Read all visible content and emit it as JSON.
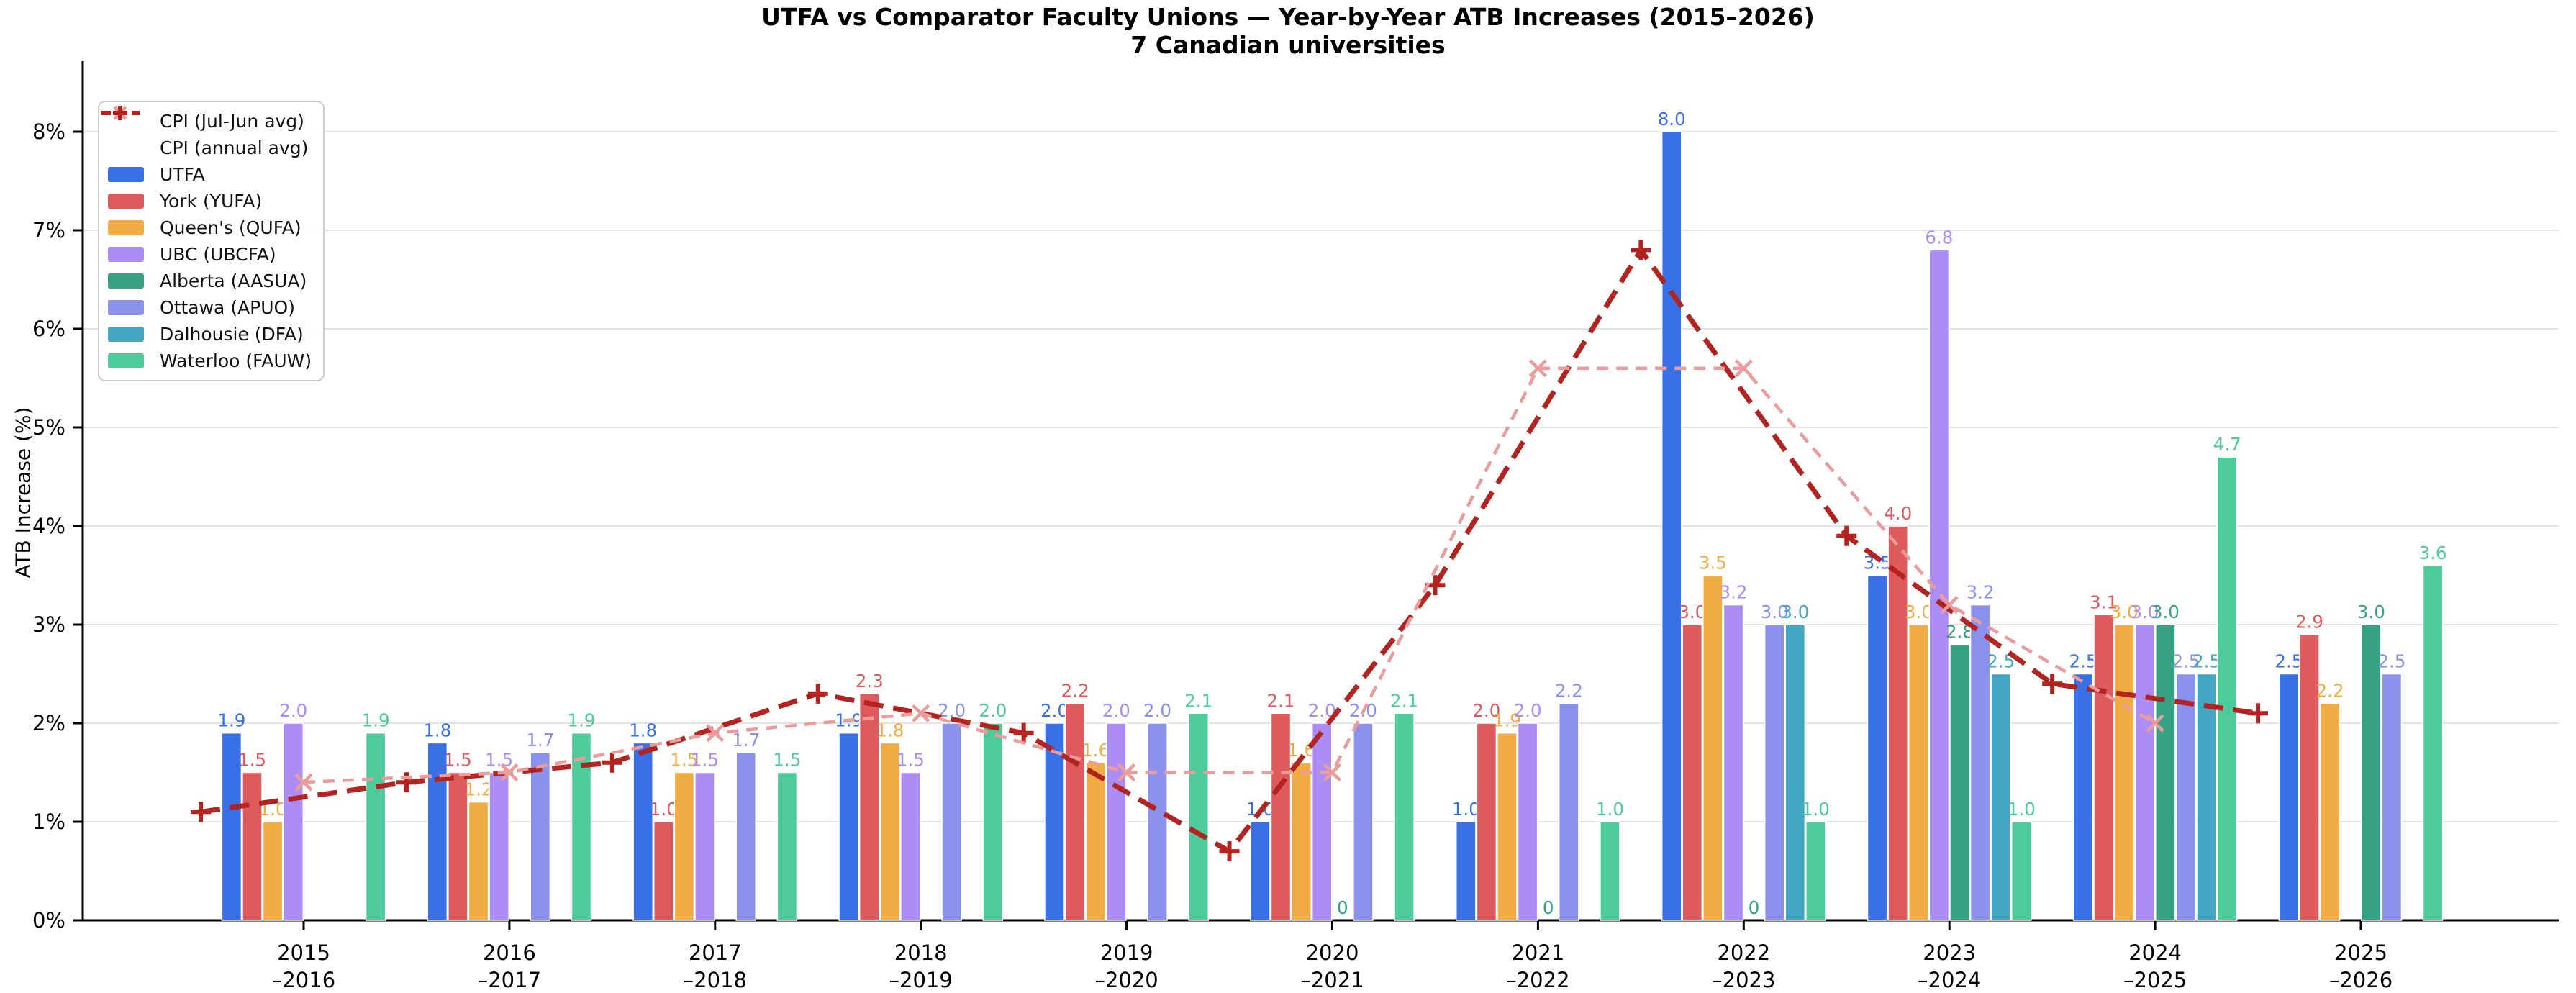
{
  "title": "UTFA vs Comparator Faculty Unions — Year-by-Year ATB Increases (2015–2026)",
  "subtitle": "7 Canadian universities",
  "y_axis": {
    "label": "ATB Increase (%)",
    "ticks": [
      "0%",
      "1%",
      "2%",
      "3%",
      "4%",
      "5%",
      "6%",
      "7%",
      "8%"
    ]
  },
  "x_axis": {
    "tick_labels": [
      [
        "2015",
        "–2016"
      ],
      [
        "2016",
        "–2017"
      ],
      [
        "2017",
        "–2018"
      ],
      [
        "2018",
        "–2019"
      ],
      [
        "2019",
        "–2020"
      ],
      [
        "2020",
        "–2021"
      ],
      [
        "2021",
        "–2022"
      ],
      [
        "2022",
        "–2023"
      ],
      [
        "2023",
        "–2024"
      ],
      [
        "2024",
        "–2025"
      ],
      [
        "2025",
        "–2026"
      ]
    ]
  },
  "legend": {
    "items": [
      {
        "label": "CPI (Jul-Jun avg)",
        "kind": "line",
        "color": "#EC9B9B",
        "marker": "x"
      },
      {
        "label": "CPI (annual avg)",
        "kind": "line",
        "color": "#B32421",
        "marker": "plus"
      },
      {
        "label": "UTFA",
        "kind": "patch",
        "color": "#3870E8"
      },
      {
        "label": "York (YUFA)",
        "kind": "patch",
        "color": "#DE5A5C"
      },
      {
        "label": "Queen's (QUFA)",
        "kind": "patch",
        "color": "#F1AC43"
      },
      {
        "label": "UBC (UBCFA)",
        "kind": "patch",
        "color": "#AB8DF5"
      },
      {
        "label": "Alberta (AASUA)",
        "kind": "patch",
        "color": "#37A183"
      },
      {
        "label": "Ottawa (APUO)",
        "kind": "patch",
        "color": "#8A92ED"
      },
      {
        "label": "Dalhousie (DFA)",
        "kind": "patch",
        "color": "#43A6C2"
      },
      {
        "label": "Waterloo (FAUW)",
        "kind": "patch",
        "color": "#4ECB9B"
      }
    ]
  },
  "chart_data": {
    "type": "bar",
    "title": "UTFA vs Comparator Faculty Unions — Year-by-Year ATB Increases (2015–2026)",
    "subtitle": "7 Canadian universities",
    "xlabel": "",
    "ylabel": "ATB Increase (%)",
    "ylim": [
      0,
      8.7
    ],
    "grid": true,
    "legend_position": "upper left",
    "categories": [
      "2015–2016",
      "2016–2017",
      "2017–2018",
      "2018–2019",
      "2019–2020",
      "2020–2021",
      "2021–2022",
      "2022–2023",
      "2023–2024",
      "2024–2025",
      "2025–2026"
    ],
    "series": [
      {
        "name": "UTFA",
        "color": "#3870E8",
        "values": [
          1.9,
          1.8,
          1.8,
          1.9,
          2.0,
          1.0,
          1.0,
          8.0,
          3.5,
          2.5,
          2.5
        ]
      },
      {
        "name": "York (YUFA)",
        "color": "#DE5A5C",
        "values": [
          1.5,
          1.5,
          1.0,
          2.3,
          2.2,
          2.1,
          2.0,
          3.0,
          4.0,
          3.1,
          2.9
        ]
      },
      {
        "name": "Queen's (QUFA)",
        "color": "#F1AC43",
        "values": [
          1.0,
          1.2,
          1.5,
          1.8,
          1.6,
          1.6,
          1.9,
          3.5,
          3.0,
          3.0,
          2.2
        ]
      },
      {
        "name": "UBC (UBCFA)",
        "color": "#AB8DF5",
        "values": [
          2.0,
          1.5,
          1.5,
          1.5,
          2.0,
          2.0,
          2.0,
          3.2,
          6.8,
          3.0,
          null
        ]
      },
      {
        "name": "Alberta (AASUA)",
        "color": "#37A183",
        "values": [
          null,
          null,
          null,
          null,
          null,
          0,
          0,
          0,
          2.8,
          3.0,
          3.0
        ]
      },
      {
        "name": "Ottawa (APUO)",
        "color": "#8A92ED",
        "values": [
          null,
          1.7,
          1.7,
          2.0,
          2.0,
          2.0,
          2.2,
          3.0,
          3.2,
          2.5,
          2.5
        ]
      },
      {
        "name": "Dalhousie (DFA)",
        "color": "#43A6C2",
        "values": [
          null,
          null,
          null,
          null,
          null,
          null,
          null,
          3.0,
          2.5,
          2.5,
          null
        ]
      },
      {
        "name": "Waterloo (FAUW)",
        "color": "#4ECB9B",
        "values": [
          1.9,
          1.9,
          1.5,
          2.0,
          2.1,
          2.1,
          1.0,
          1.0,
          1.0,
          4.7,
          3.6
        ]
      }
    ],
    "cpi_lines": [
      {
        "name": "CPI (annual avg)",
        "color": "#B32421",
        "marker": "plus",
        "dash": "27 14",
        "width": 7,
        "x_start": -0.5,
        "values": [
          1.1,
          1.4,
          1.6,
          2.3,
          1.9,
          0.7,
          3.4,
          6.8,
          3.9,
          2.4,
          2.1
        ]
      },
      {
        "name": "CPI (Jul-Jun avg)",
        "color": "#EC9B9B",
        "marker": "x",
        "dash": "16 11",
        "width": 4.5,
        "x_start": 0,
        "values": [
          1.4,
          1.5,
          1.9,
          2.1,
          1.5,
          1.5,
          5.6,
          5.6,
          3.2,
          2.0
        ]
      }
    ]
  }
}
